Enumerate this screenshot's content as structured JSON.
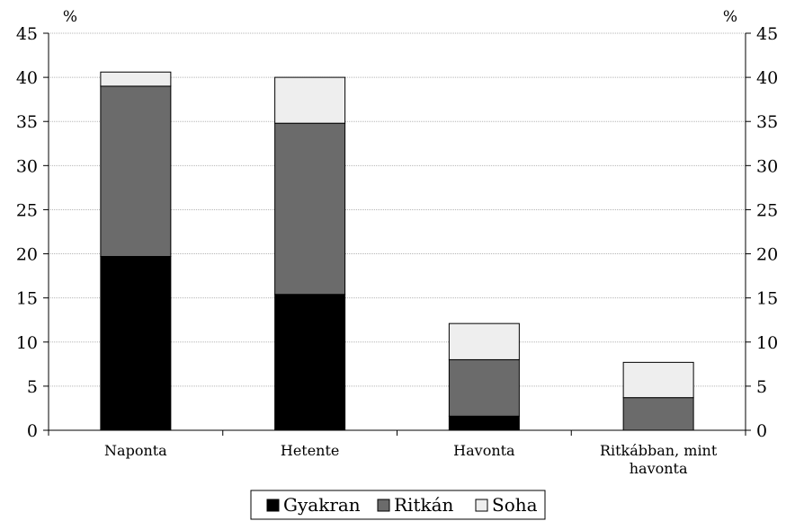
{
  "chart_data": {
    "type": "bar",
    "stacked": true,
    "categories": [
      "Naponta",
      "Hetente",
      "Havonta",
      "Ritkábban, mint havonta"
    ],
    "category_lines": [
      [
        "Naponta"
      ],
      [
        "Hetente"
      ],
      [
        "Havonta"
      ],
      [
        "Ritkábban, mint",
        "havonta"
      ]
    ],
    "series": [
      {
        "name": "Gyakran",
        "values": [
          19.7,
          15.4,
          1.6,
          0.0
        ],
        "color": "#000000"
      },
      {
        "name": "Ritkán",
        "values": [
          19.3,
          19.4,
          6.4,
          3.7
        ],
        "color": "#6b6b6b"
      },
      {
        "name": "Soha",
        "values": [
          1.6,
          5.2,
          4.1,
          4.0
        ],
        "color": "#eeeeee"
      }
    ],
    "ylim": [
      0,
      45
    ],
    "yticks": [
      0,
      5,
      10,
      15,
      20,
      25,
      30,
      35,
      40,
      45
    ],
    "y_unit_left": "%",
    "y_unit_right": "%",
    "grid": true,
    "legend": "bottom"
  }
}
